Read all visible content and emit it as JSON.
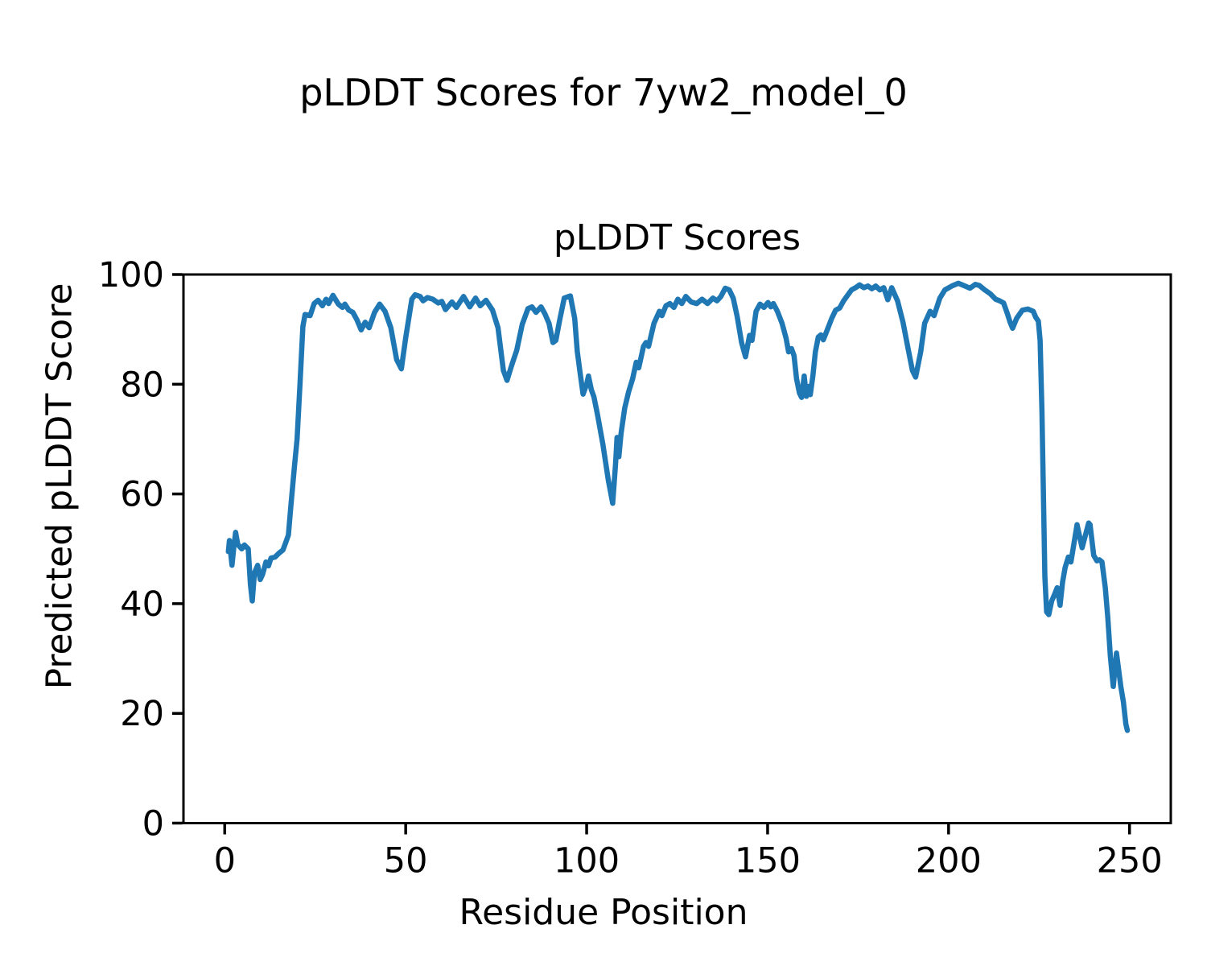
{
  "figure": {
    "suptitle": "pLDDT Scores for 7yw2_model_0",
    "axes_title": "pLDDT Scores",
    "xlabel": "Residue Position",
    "ylabel": "Predicted pLDDT Score"
  },
  "chart_data": {
    "type": "line",
    "title": "pLDDT Scores",
    "xlabel": "Residue Position",
    "ylabel": "Predicted pLDDT Score",
    "xlim": [
      -11.4,
      261.4
    ],
    "ylim": [
      0,
      100
    ],
    "x_ticks": [
      0,
      50,
      100,
      150,
      200,
      250
    ],
    "y_ticks": [
      0,
      20,
      40,
      60,
      80,
      100
    ],
    "grid": false,
    "legend": "none",
    "line_color": "#1f77b4",
    "series": [
      {
        "name": "pLDDT",
        "points": [
          [
            1,
            49.5
          ],
          [
            1.3,
            51.5
          ],
          [
            2,
            47
          ],
          [
            2.5,
            50.2
          ],
          [
            3,
            53
          ],
          [
            3.6,
            50.8
          ],
          [
            4.7,
            50
          ],
          [
            5.4,
            50.7
          ],
          [
            6.5,
            50
          ],
          [
            7.1,
            43.5
          ],
          [
            7.6,
            40.5
          ],
          [
            8.2,
            45.6
          ],
          [
            9.1,
            47
          ],
          [
            9.8,
            44.4
          ],
          [
            10.5,
            45.4
          ],
          [
            11.4,
            47.6
          ],
          [
            12.1,
            46.9
          ],
          [
            12.8,
            48.3
          ],
          [
            13.9,
            48.5
          ],
          [
            15,
            49.2
          ],
          [
            16.1,
            49.8
          ],
          [
            17,
            51.4
          ],
          [
            17.6,
            52.5
          ],
          [
            18.3,
            58
          ],
          [
            19.2,
            64.5
          ],
          [
            20,
            70
          ],
          [
            20.8,
            80
          ],
          [
            21.6,
            90.5
          ],
          [
            22.2,
            92.7
          ],
          [
            23.6,
            92.5
          ],
          [
            24.7,
            94.7
          ],
          [
            25.8,
            95.3
          ],
          [
            27,
            94.3
          ],
          [
            28,
            95.5
          ],
          [
            28.7,
            94.7
          ],
          [
            29.9,
            96.2
          ],
          [
            31.4,
            94.6
          ],
          [
            32.5,
            94
          ],
          [
            33.2,
            94.6
          ],
          [
            34.3,
            93.5
          ],
          [
            35.4,
            93.1
          ],
          [
            36.5,
            91.8
          ],
          [
            37.7,
            89.9
          ],
          [
            38.8,
            91.3
          ],
          [
            39.9,
            90.3
          ],
          [
            41.4,
            93.1
          ],
          [
            42.8,
            94.6
          ],
          [
            44.3,
            93.3
          ],
          [
            45.9,
            90.3
          ],
          [
            47.5,
            84.5
          ],
          [
            48.8,
            82.8
          ],
          [
            50,
            88.5
          ],
          [
            51.7,
            95.5
          ],
          [
            52.6,
            96.3
          ],
          [
            54,
            96
          ],
          [
            54.8,
            95.2
          ],
          [
            56,
            95.8
          ],
          [
            57.5,
            95.5
          ],
          [
            59,
            94.8
          ],
          [
            60,
            95.1
          ],
          [
            61,
            93.6
          ],
          [
            62.8,
            95
          ],
          [
            64,
            94
          ],
          [
            66,
            96
          ],
          [
            67.7,
            94.1
          ],
          [
            69.3,
            95.7
          ],
          [
            70.6,
            94.3
          ],
          [
            72.2,
            95.3
          ],
          [
            74,
            93.5
          ],
          [
            75.5,
            90.3
          ],
          [
            77,
            82.5
          ],
          [
            78,
            80.7
          ],
          [
            79.3,
            83.5
          ],
          [
            80.7,
            86.2
          ],
          [
            82.2,
            90.9
          ],
          [
            83.8,
            93.8
          ],
          [
            84.9,
            94.1
          ],
          [
            86,
            93.1
          ],
          [
            87.4,
            94.1
          ],
          [
            88.5,
            92.8
          ],
          [
            89.6,
            91.1
          ],
          [
            90.7,
            87.6
          ],
          [
            91.5,
            88
          ],
          [
            92.5,
            91.5
          ],
          [
            93.8,
            95.7
          ],
          [
            95.5,
            96.1
          ],
          [
            96.7,
            92
          ],
          [
            97.4,
            86
          ],
          [
            98.2,
            82
          ],
          [
            99,
            78.2
          ],
          [
            100,
            80
          ],
          [
            100.5,
            81.5
          ],
          [
            101.3,
            79
          ],
          [
            102,
            77.7
          ],
          [
            103,
            74.5
          ],
          [
            104.5,
            69
          ],
          [
            106,
            62.5
          ],
          [
            107.2,
            58.3
          ],
          [
            108,
            65.5
          ],
          [
            108.4,
            70.3
          ],
          [
            108.9,
            66.8
          ],
          [
            109.5,
            71
          ],
          [
            110.5,
            75.6
          ],
          [
            111.6,
            78.6
          ],
          [
            112.7,
            81
          ],
          [
            113.7,
            84
          ],
          [
            114.4,
            83
          ],
          [
            115.7,
            86.9
          ],
          [
            116.4,
            87.6
          ],
          [
            117.1,
            86.9
          ],
          [
            118.6,
            91.1
          ],
          [
            120.1,
            93.3
          ],
          [
            120.8,
            92.5
          ],
          [
            121.9,
            94.3
          ],
          [
            123,
            94.7
          ],
          [
            124.1,
            94
          ],
          [
            125.2,
            95.5
          ],
          [
            126.3,
            94.7
          ],
          [
            127.4,
            96
          ],
          [
            128.9,
            95
          ],
          [
            130.4,
            94.7
          ],
          [
            131.9,
            95.5
          ],
          [
            133.4,
            94.7
          ],
          [
            134.9,
            95.7
          ],
          [
            136,
            95.2
          ],
          [
            137.1,
            96
          ],
          [
            138.3,
            97.5
          ],
          [
            139.4,
            97.2
          ],
          [
            140.5,
            95.7
          ],
          [
            141.6,
            92.3
          ],
          [
            142.8,
            87.6
          ],
          [
            143.9,
            85
          ],
          [
            145,
            88.9
          ],
          [
            145.7,
            88
          ],
          [
            146.8,
            93.3
          ],
          [
            147.9,
            94.6
          ],
          [
            149,
            94
          ],
          [
            150.1,
            94.9
          ],
          [
            150.9,
            94.1
          ],
          [
            151.6,
            94.7
          ],
          [
            152.7,
            93.3
          ],
          [
            154,
            91.1
          ],
          [
            155.1,
            88.4
          ],
          [
            155.8,
            85.9
          ],
          [
            156.6,
            86.5
          ],
          [
            157.3,
            85.2
          ],
          [
            158,
            81
          ],
          [
            158.8,
            78.4
          ],
          [
            159.4,
            77.6
          ],
          [
            160.1,
            81.5
          ],
          [
            160.7,
            77.8
          ],
          [
            161.4,
            79.6
          ],
          [
            161.8,
            78.1
          ],
          [
            162.5,
            81.5
          ],
          [
            163.2,
            85.9
          ],
          [
            164,
            88.6
          ],
          [
            164.7,
            89
          ],
          [
            165.4,
            88.1
          ],
          [
            166.6,
            90.1
          ],
          [
            167.7,
            92
          ],
          [
            168.8,
            93.5
          ],
          [
            169.9,
            93.9
          ],
          [
            171,
            95.2
          ],
          [
            172.1,
            96.2
          ],
          [
            173.2,
            97.2
          ],
          [
            174.3,
            97.6
          ],
          [
            175.4,
            98.1
          ],
          [
            176.6,
            97.6
          ],
          [
            177.7,
            97.9
          ],
          [
            178.8,
            97.4
          ],
          [
            179.9,
            97.9
          ],
          [
            181,
            97.2
          ],
          [
            182.1,
            97.6
          ],
          [
            183.2,
            95.4
          ],
          [
            184.3,
            97.6
          ],
          [
            185.9,
            95.2
          ],
          [
            187.4,
            91.3
          ],
          [
            188.8,
            86.5
          ],
          [
            190,
            82.5
          ],
          [
            190.9,
            81.3
          ],
          [
            192.3,
            85.9
          ],
          [
            193.4,
            91.1
          ],
          [
            194.9,
            93.3
          ],
          [
            196,
            92.5
          ],
          [
            197.6,
            95.7
          ],
          [
            199,
            97.2
          ],
          [
            200.9,
            97.9
          ],
          [
            202.7,
            98.4
          ],
          [
            204.5,
            97.9
          ],
          [
            205.9,
            97.5
          ],
          [
            207.4,
            98.2
          ],
          [
            208.5,
            98
          ],
          [
            210,
            97.2
          ],
          [
            211.5,
            96.5
          ],
          [
            213,
            95.5
          ],
          [
            214.1,
            95.2
          ],
          [
            215.2,
            94.8
          ],
          [
            216.3,
            92.8
          ],
          [
            217,
            91.3
          ],
          [
            217.7,
            90.2
          ],
          [
            218.8,
            92
          ],
          [
            220.4,
            93.5
          ],
          [
            221.9,
            93.7
          ],
          [
            223.4,
            93.3
          ],
          [
            224.1,
            92.2
          ],
          [
            224.8,
            91.5
          ],
          [
            225.3,
            88
          ],
          [
            225.8,
            75
          ],
          [
            226.2,
            60
          ],
          [
            226.6,
            45
          ],
          [
            227.1,
            38.5
          ],
          [
            227.7,
            38
          ],
          [
            228.5,
            40.5
          ],
          [
            229.3,
            41.7
          ],
          [
            230,
            42.9
          ],
          [
            230.8,
            39.7
          ],
          [
            231.5,
            43.9
          ],
          [
            232.2,
            46.6
          ],
          [
            233.1,
            48.5
          ],
          [
            233.8,
            47.6
          ],
          [
            235.5,
            54.4
          ],
          [
            236.9,
            50.2
          ],
          [
            238.7,
            54.7
          ],
          [
            239.1,
            54.4
          ],
          [
            240.1,
            48.8
          ],
          [
            241,
            47.8
          ],
          [
            241.7,
            48
          ],
          [
            242.4,
            47.6
          ],
          [
            243.3,
            42.9
          ],
          [
            244,
            37.5
          ],
          [
            244.7,
            30.4
          ],
          [
            245.5,
            24.9
          ],
          [
            246.4,
            31
          ],
          [
            247.6,
            24.9
          ],
          [
            248.3,
            22.1
          ],
          [
            249,
            18
          ],
          [
            249.4,
            16.9
          ]
        ]
      }
    ]
  }
}
